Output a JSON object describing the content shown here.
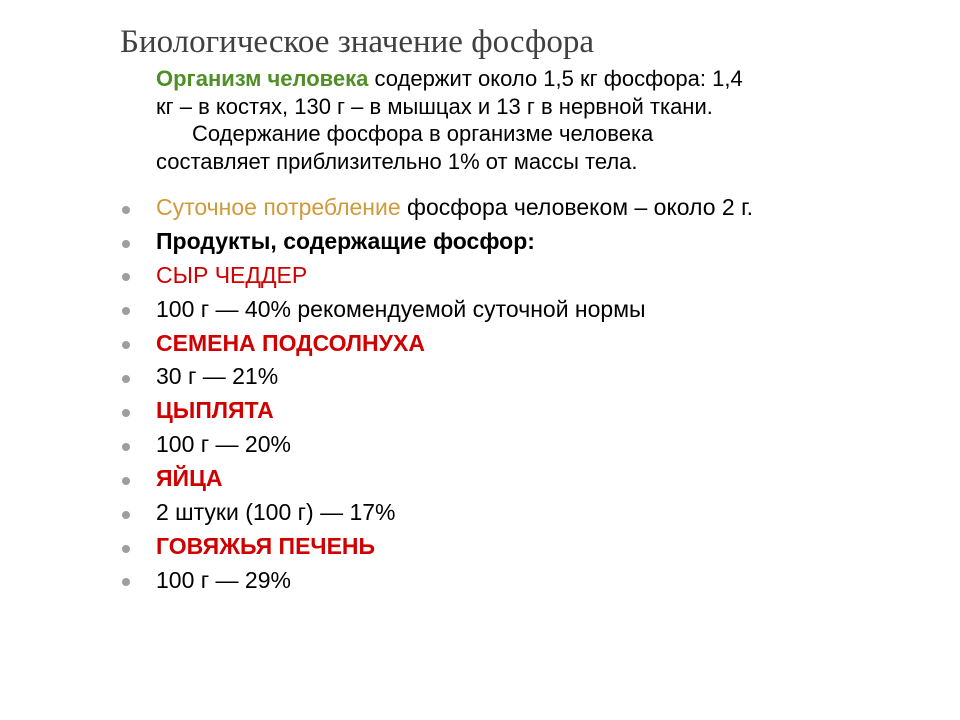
{
  "title": "Биологическое значение фосфора",
  "intro": {
    "lead": "Организм человека",
    "line1_rest": " содержит около 1,5 кг фосфора: 1,4 кг – в костях, 130 г – в мышцах и 13 г в нервной ткани.",
    "line2": "Содержание фосфора в организме человека составляет приблизительно 1% от массы тела."
  },
  "items": [
    {
      "class": "daily",
      "lead": "Суточное потребление",
      "rest": " фосфора человеком –  около 2 г."
    },
    {
      "class": "heading-bold",
      "text": "Продукты, содержащие фосфор:"
    },
    {
      "class": "red",
      "text": "СЫР ЧЕДДЕР"
    },
    {
      "class": "",
      "text": "100 г — 40% рекомендуемой суточной нормы"
    },
    {
      "class": "red-bold",
      "text": "СЕМЕНА ПОДСОЛНУХА"
    },
    {
      "class": "",
      "text": "30 г — 21%"
    },
    {
      "class": "red-bold",
      "text": "ЦЫПЛЯТА"
    },
    {
      "class": "",
      "text": "100 г — 20%"
    },
    {
      "class": "red-bold",
      "text": "ЯЙЦА"
    },
    {
      "class": "",
      "text": "2 штуки (100 г) — 17%"
    },
    {
      "class": "red-bold",
      "text": "ГОВЯЖЬЯ ПЕЧЕНЬ"
    },
    {
      "class": "",
      "text": "100 г — 29%"
    }
  ],
  "colors": {
    "title": "#404040",
    "body": "#000000",
    "green": "#4f8f25",
    "orange": "#cf9a39",
    "red": "#d00000",
    "bullet": "#9e9e9e",
    "background": "#ffffff"
  },
  "fonts": {
    "title_family": "Times New Roman",
    "body_family": "Arial",
    "title_size_pt": 25,
    "body_size_pt": 17
  }
}
